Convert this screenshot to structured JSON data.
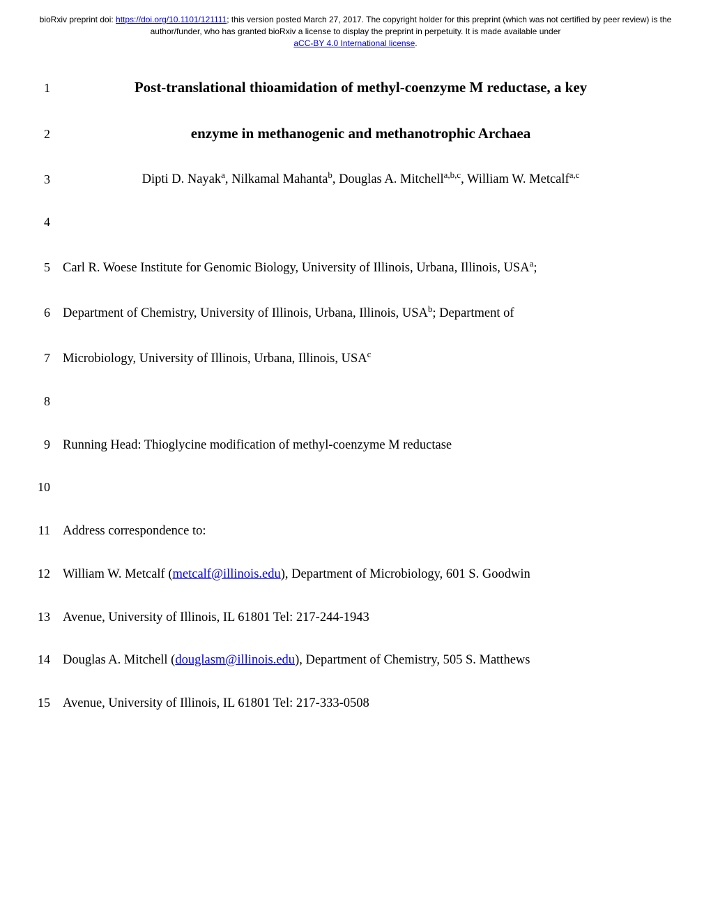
{
  "header": {
    "prefix": "bioRxiv preprint doi: ",
    "doi_url": "https://doi.org/10.1101/121111",
    "mid_text": "; this version posted March 27, 2017. The copyright holder for this preprint (which was not certified by peer review) is the author/funder, who has granted bioRxiv a license to display the preprint in perpetuity. It is made available under ",
    "license_text": "aCC-BY 4.0 International license",
    "suffix": "."
  },
  "lines": {
    "1": {
      "num": "1",
      "type": "title",
      "text": "Post-translational thioamidation of methyl-coenzyme M reductase, a key"
    },
    "2": {
      "num": "2",
      "type": "title",
      "text": "enzyme in methanogenic and methanotrophic Archaea"
    },
    "3": {
      "num": "3",
      "type": "authors",
      "parts": {
        "a1": "Dipti D. Nayak",
        "s1": "a",
        "a2": ", Nilkamal Mahanta",
        "s2": "b",
        "a3": ", Douglas A. Mitchell",
        "s3": "a,b,c",
        "a4": ", William W. Metcalf",
        "s4": "a,c"
      }
    },
    "4": {
      "num": "4",
      "text": ""
    },
    "5": {
      "num": "5",
      "parts": {
        "t1": "Carl R. Woese Institute for Genomic Biology, University of Illinois, Urbana, Illinois, USA",
        "s1": "a",
        "t2": ";"
      }
    },
    "6": {
      "num": "6",
      "parts": {
        "t1": "Department of Chemistry, University of Illinois, Urbana, Illinois, USA",
        "s1": "b",
        "t2": "; Department of"
      }
    },
    "7": {
      "num": "7",
      "parts": {
        "t1": "Microbiology, University of Illinois, Urbana, Illinois, USA",
        "s1": "c"
      }
    },
    "8": {
      "num": "8",
      "text": ""
    },
    "9": {
      "num": "9",
      "text": "Running Head: Thioglycine modification of methyl-coenzyme M reductase"
    },
    "10": {
      "num": "10",
      "text": ""
    },
    "11": {
      "num": "11",
      "text": "Address correspondence to:"
    },
    "12": {
      "num": "12",
      "parts": {
        "t1": "William W. Metcalf (",
        "email": "metcalf@illinois.edu",
        "t2": "), Department of Microbiology, 601 S. Goodwin"
      }
    },
    "13": {
      "num": "13",
      "text": "Avenue, University of Illinois, IL 61801 Tel: 217-244-1943"
    },
    "14": {
      "num": "14",
      "parts": {
        "t1": " Douglas A. Mitchell (",
        "email": "douglasm@illinois.edu",
        "t2": "), Department of Chemistry, 505 S. Matthews"
      }
    },
    "15": {
      "num": "15",
      "text": "Avenue, University of Illinois, IL 61801 Tel: 217-333-0508"
    }
  },
  "colors": {
    "link": "#0000ee",
    "text": "#000000",
    "background": "#ffffff"
  }
}
